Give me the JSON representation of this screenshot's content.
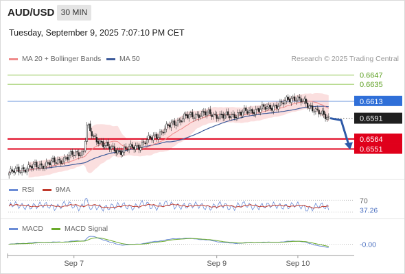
{
  "header": {
    "symbol": "AUD/USD",
    "timeframe": "30 MIN",
    "datetime": "Tuesday, September 9, 2025 7:07:10 PM CET"
  },
  "legend": {
    "ma20_label": "MA 20 + Bollinger Bands",
    "ma50_label": "MA 50",
    "credit": "Research © 2025 Trading Central",
    "rsi_label": "RSI",
    "rsi_ma_label": "9MA",
    "macd_label": "MACD",
    "macd_signal_label": "MACD Signal"
  },
  "colors": {
    "up": "#2e7d32",
    "down": "#c62828",
    "ma20": "#ef8a8a",
    "ma50": "#3c5a9a",
    "band_fill": "#fbdcdc",
    "resistance": "#8bc34a",
    "pivot": "#5b8bd6",
    "support": "#e0001b",
    "rsi": "#6b8cd6",
    "rsi_ma": "#c0392b",
    "macd": "#6b8cd6",
    "macd_signal": "#6aaa2a",
    "arrow": "#2e5aa8"
  },
  "chart_data": {
    "type": "candlestick",
    "instrument": "AUD/USD",
    "interval": "30 MIN",
    "price_range": [
      0.6515,
      0.666
    ],
    "x_tick_labels": [
      "Sep 7",
      "Sep 9",
      "Sep 10"
    ],
    "levels": [
      {
        "label": "0.6647",
        "value": 0.6647,
        "kind": "resistance"
      },
      {
        "label": "0.6635",
        "value": 0.6635,
        "kind": "resistance"
      },
      {
        "label": "0.6613",
        "value": 0.6613,
        "kind": "pivot"
      },
      {
        "label": "0.6591",
        "value": 0.6591,
        "kind": "last"
      },
      {
        "label": "0.6564",
        "value": 0.6564,
        "kind": "support"
      },
      {
        "label": "0.6551",
        "value": 0.6551,
        "kind": "support"
      }
    ],
    "close_anchors": [
      [
        0,
        0.652
      ],
      [
        10,
        0.6526
      ],
      [
        20,
        0.653
      ],
      [
        30,
        0.6535
      ],
      [
        40,
        0.6544
      ],
      [
        46,
        0.6548
      ],
      [
        48,
        0.6582
      ],
      [
        52,
        0.6565
      ],
      [
        57,
        0.656
      ],
      [
        62,
        0.6552
      ],
      [
        68,
        0.6548
      ],
      [
        74,
        0.6552
      ],
      [
        80,
        0.6555
      ],
      [
        86,
        0.6563
      ],
      [
        92,
        0.657
      ],
      [
        100,
        0.6583
      ],
      [
        108,
        0.6592
      ],
      [
        116,
        0.6596
      ],
      [
        124,
        0.6597
      ],
      [
        132,
        0.6593
      ],
      [
        140,
        0.6596
      ],
      [
        150,
        0.6601
      ],
      [
        160,
        0.6605
      ],
      [
        168,
        0.6609
      ],
      [
        172,
        0.6616
      ],
      [
        176,
        0.6618
      ],
      [
        182,
        0.6611
      ],
      [
        188,
        0.6603
      ],
      [
        193,
        0.6595
      ],
      [
        197,
        0.6591
      ]
    ],
    "rsi": {
      "levels": [
        70,
        30
      ],
      "level_labels": [
        "70",
        "37.26"
      ],
      "last": 37.26
    },
    "macd": {
      "last_label": "-0.00"
    }
  }
}
